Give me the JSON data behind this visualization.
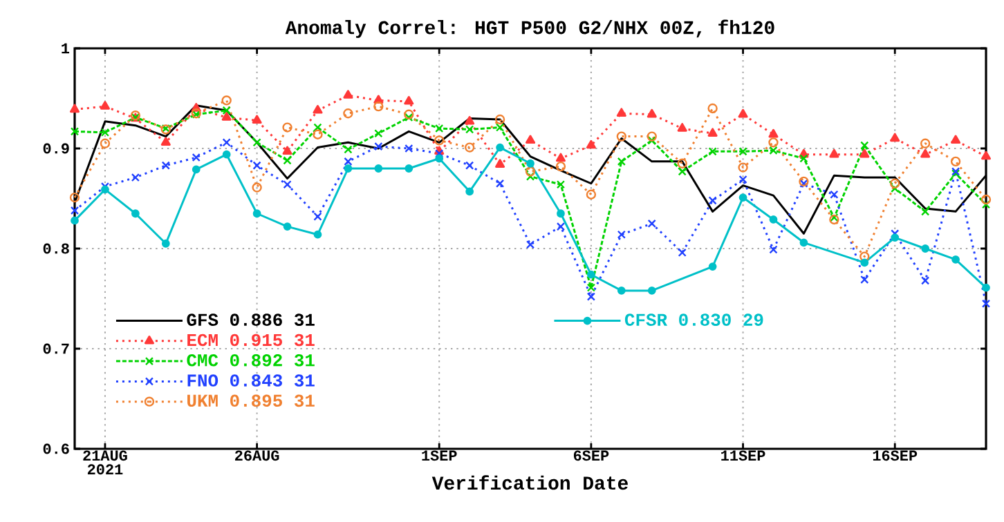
{
  "chart_data": {
    "type": "line",
    "title": "Anomaly Correl: HGT P500 G2/NHX 00Z, fh120",
    "xlabel": "Verification Date",
    "x": [
      "2021-08-20",
      "2021-08-21",
      "2021-08-22",
      "2021-08-23",
      "2021-08-24",
      "2021-08-25",
      "2021-08-26",
      "2021-08-27",
      "2021-08-28",
      "2021-08-29",
      "2021-08-30",
      "2021-08-31",
      "2021-09-01",
      "2021-09-02",
      "2021-09-03",
      "2021-09-04",
      "2021-09-05",
      "2021-09-06",
      "2021-09-07",
      "2021-09-08",
      "2021-09-09",
      "2021-09-10",
      "2021-09-11",
      "2021-09-12",
      "2021-09-13",
      "2021-09-14",
      "2021-09-15",
      "2021-09-16",
      "2021-09-17",
      "2021-09-18",
      "2021-09-19"
    ],
    "xlim": [
      "2021-08-20",
      "2021-09-19"
    ],
    "xticks": [
      {
        "value": "2021-08-21",
        "label": "21AUG 2021"
      },
      {
        "value": "2021-08-26",
        "label": "26AUG"
      },
      {
        "value": "2021-09-01",
        "label": "1SEP"
      },
      {
        "value": "2021-09-06",
        "label": "6SEP"
      },
      {
        "value": "2021-09-11",
        "label": "11SEP"
      },
      {
        "value": "2021-09-16",
        "label": "16SEP"
      }
    ],
    "ylim": [
      0.6,
      1
    ],
    "yticks": [
      0.6,
      0.7,
      0.8,
      0.9,
      1
    ],
    "grid": true,
    "legend": "bottom left",
    "series": [
      {
        "name": "GFS 0.886 31",
        "color": "#000000",
        "line_style": "solid",
        "marker": "none",
        "values": [
          0.846,
          0.927,
          0.923,
          0.912,
          0.943,
          0.938,
          0.906,
          0.87,
          0.901,
          0.906,
          0.9,
          0.917,
          0.906,
          0.93,
          0.929,
          0.892,
          0.878,
          0.865,
          0.91,
          0.887,
          0.887,
          0.837,
          0.863,
          0.853,
          0.815,
          0.873,
          0.871,
          0.871,
          0.84,
          0.837,
          0.873
        ]
      },
      {
        "name": "ECM 0.915 31",
        "color": "#ff3838",
        "line_style": "dotted",
        "marker": "triangle",
        "values": [
          0.939,
          0.942,
          0.93,
          0.906,
          0.94,
          0.931,
          0.928,
          0.897,
          0.938,
          0.953,
          0.948,
          0.947,
          0.897,
          0.927,
          0.884,
          0.908,
          0.89,
          0.903,
          0.935,
          0.934,
          0.92,
          0.915,
          0.934,
          0.914,
          0.894,
          0.894,
          0.894,
          0.91,
          0.894,
          0.908,
          0.892
        ]
      },
      {
        "name": "CMC 0.892 31",
        "color": "#00d200",
        "line_style": "dashed",
        "marker": "cross",
        "values": [
          0.917,
          0.916,
          0.931,
          0.92,
          0.934,
          0.938,
          0.906,
          0.888,
          0.921,
          0.899,
          0.915,
          0.931,
          0.92,
          0.919,
          0.921,
          0.872,
          0.864,
          0.761,
          0.887,
          0.908,
          0.877,
          0.897,
          0.897,
          0.898,
          0.89,
          0.831,
          0.903,
          0.86,
          0.837,
          0.875,
          0.844
        ]
      },
      {
        "name": "FNO 0.843 31",
        "color": "#2040ff",
        "line_style": "dotted",
        "marker": "cross",
        "values": [
          0.838,
          0.862,
          0.871,
          0.883,
          0.891,
          0.906,
          0.883,
          0.864,
          0.832,
          0.887,
          0.902,
          0.9,
          0.895,
          0.883,
          0.865,
          0.804,
          0.822,
          0.752,
          0.814,
          0.825,
          0.796,
          0.848,
          0.869,
          0.799,
          0.865,
          0.854,
          0.769,
          0.815,
          0.768,
          0.877,
          0.745
        ]
      },
      {
        "name": "UKM 0.895 31",
        "color": "#f08030",
        "line_style": "dotted",
        "marker": "circle",
        "values": [
          0.851,
          0.905,
          0.933,
          0.919,
          0.935,
          0.948,
          0.861,
          0.921,
          0.914,
          0.935,
          0.942,
          0.934,
          0.908,
          0.901,
          0.929,
          0.877,
          0.882,
          0.854,
          0.912,
          0.912,
          0.885,
          0.94,
          0.881,
          0.906,
          0.867,
          0.829,
          0.792,
          0.865,
          0.905,
          0.887,
          0.849
        ]
      },
      {
        "name": "CFSR 0.830 29",
        "color": "#00c0c8",
        "line_style": "solid",
        "marker": "circle",
        "x": [
          "2021-08-20",
          "2021-08-21",
          "2021-08-22",
          "2021-08-23",
          "2021-08-24",
          "2021-08-25",
          "2021-08-26",
          "2021-08-27",
          "2021-08-28",
          "2021-08-29",
          "2021-08-30",
          "2021-08-31",
          "2021-09-01",
          "2021-09-02",
          "2021-09-03",
          "2021-09-04",
          "2021-09-05",
          "2021-09-06",
          "2021-09-07",
          "2021-09-08",
          "2021-09-10",
          "2021-09-11",
          "2021-09-12",
          "2021-09-13",
          "2021-09-15",
          "2021-09-16",
          "2021-09-17",
          "2021-09-18",
          "2021-09-19"
        ],
        "values": [
          0.828,
          0.859,
          0.835,
          0.805,
          0.879,
          0.894,
          0.835,
          0.822,
          0.814,
          0.88,
          0.88,
          0.88,
          0.89,
          0.857,
          0.901,
          0.885,
          0.835,
          0.774,
          0.758,
          0.758,
          0.782,
          0.851,
          0.829,
          0.806,
          0.786,
          0.811,
          0.8,
          0.789,
          0.761
        ]
      }
    ]
  }
}
